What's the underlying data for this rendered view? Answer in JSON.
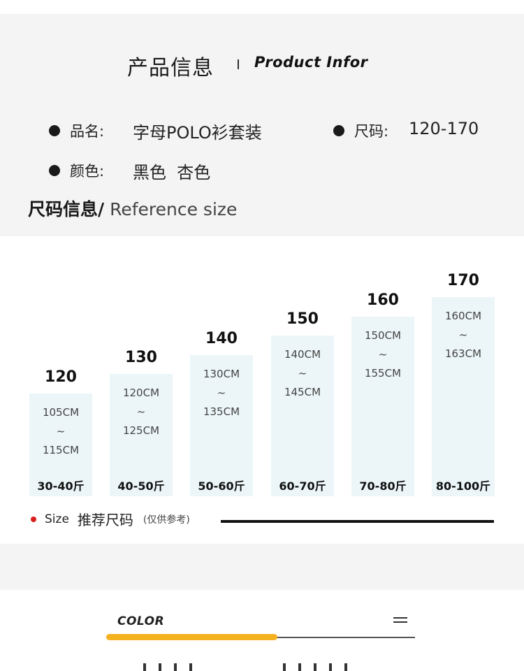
{
  "header": {
    "title_cn": "产品信息",
    "title_en": "Product Infor"
  },
  "product": {
    "name_label": "品名:",
    "name_value": "字母POLO衫套装",
    "size_label": "尺码:",
    "size_value": "120-170",
    "color_label": "颜色:",
    "color_value": "黑色  杏色"
  },
  "size_section": {
    "heading_cn": "尺码信息/",
    "heading_en": " Reference size"
  },
  "chart_data": {
    "type": "bar",
    "categories": [
      "120",
      "130",
      "140",
      "150",
      "160",
      "170"
    ],
    "height_ranges": [
      [
        "105CM",
        "~",
        "115CM"
      ],
      [
        "120CM",
        "~",
        "125CM"
      ],
      [
        "130CM",
        "~",
        "135CM"
      ],
      [
        "140CM",
        "~",
        "145CM"
      ],
      [
        "150CM",
        "~",
        "155CM"
      ],
      [
        "160CM",
        "~",
        "163CM"
      ]
    ],
    "weights": [
      "30-40斤",
      "40-50斤",
      "50-60斤",
      "60-70斤",
      "70-80斤",
      "80-100斤"
    ]
  },
  "legend": {
    "en": "Size",
    "cn": "推荐尺码",
    "note": "(仅供参考)"
  },
  "color_section": {
    "label": "COLOR"
  },
  "colors": {
    "bar_fill": "#ecf6f9",
    "accent": "#f4b221",
    "legend_dot": "#d81e1e"
  }
}
